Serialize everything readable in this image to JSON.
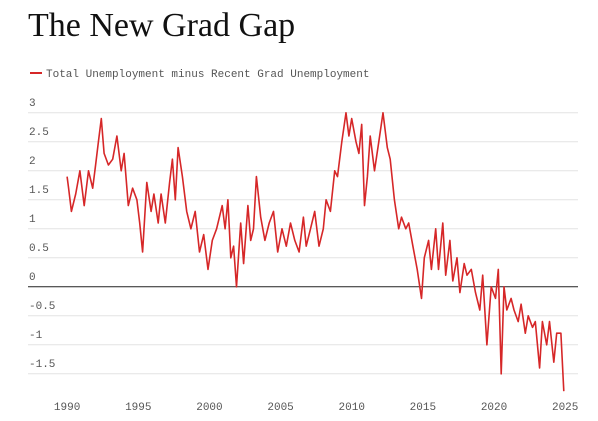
{
  "chart_data": {
    "type": "line",
    "title": "The New Grad Gap",
    "xlim": [
      1987.25,
      2025.9
    ],
    "xticks": [
      1990,
      1995,
      2000,
      2005,
      2010,
      2015,
      2020,
      2025
    ],
    "ylim": [
      -1.9,
      3.1
    ],
    "yticks": [
      3,
      2.5,
      2,
      1.5,
      1,
      0.5,
      0,
      -0.5,
      -1,
      -1.5
    ],
    "grid": true,
    "legend": "top-left",
    "x": [
      1990.0,
      1990.1,
      1990.3,
      1990.6,
      1990.9,
      1991.2,
      1991.5,
      1991.8,
      1992.0,
      1992.2,
      1992.4,
      1992.6,
      1992.9,
      1993.2,
      1993.5,
      1993.8,
      1994.0,
      1994.3,
      1994.6,
      1994.9,
      1995.1,
      1995.3,
      1995.6,
      1995.9,
      1996.1,
      1996.4,
      1996.6,
      1996.9,
      1997.2,
      1997.4,
      1997.6,
      1997.8,
      1998.1,
      1998.4,
      1998.7,
      1999.0,
      1999.3,
      1999.6,
      1999.9,
      2000.2,
      2000.5,
      2000.9,
      2001.1,
      2001.3,
      2001.5,
      2001.7,
      2001.9,
      2002.2,
      2002.4,
      2002.7,
      2002.9,
      2003.1,
      2003.3,
      2003.6,
      2003.9,
      2004.2,
      2004.5,
      2004.8,
      2005.1,
      2005.4,
      2005.7,
      2006.0,
      2006.3,
      2006.6,
      2006.8,
      2007.1,
      2007.4,
      2007.7,
      2008.0,
      2008.2,
      2008.5,
      2008.8,
      2009.0,
      2009.3,
      2009.6,
      2009.8,
      2010.0,
      2010.3,
      2010.5,
      2010.7,
      2010.9,
      2011.1,
      2011.3,
      2011.6,
      2011.9,
      2012.2,
      2012.5,
      2012.7,
      2013.0,
      2013.3,
      2013.5,
      2013.8,
      2014.0,
      2014.3,
      2014.6,
      2014.9,
      2015.1,
      2015.4,
      2015.6,
      2015.9,
      2016.1,
      2016.4,
      2016.6,
      2016.9,
      2017.1,
      2017.4,
      2017.6,
      2017.9,
      2018.1,
      2018.4,
      2018.7,
      2019.0,
      2019.2,
      2019.5,
      2019.8,
      2020.1,
      2020.3,
      2020.5,
      2020.7,
      2020.9,
      2021.2,
      2021.4,
      2021.7,
      2021.9,
      2022.2,
      2022.4,
      2022.7,
      2022.9,
      2023.2,
      2023.4,
      2023.7,
      2023.9,
      2024.2,
      2024.4,
      2024.7,
      2024.9
    ],
    "series": [
      {
        "name": "Total Unemployment minus Recent Grad Unemployment",
        "color": "#d62728",
        "values": [
          1.9,
          1.7,
          1.3,
          1.6,
          2.0,
          1.4,
          2.0,
          1.7,
          2.1,
          2.5,
          2.9,
          2.3,
          2.1,
          2.2,
          2.6,
          2.0,
          2.3,
          1.4,
          1.7,
          1.5,
          1.1,
          0.6,
          1.8,
          1.3,
          1.6,
          1.1,
          1.6,
          1.1,
          1.8,
          2.2,
          1.5,
          2.4,
          1.9,
          1.3,
          1.0,
          1.3,
          0.6,
          0.9,
          0.3,
          0.8,
          1.0,
          1.4,
          1.0,
          1.5,
          0.5,
          0.7,
          0.0,
          1.1,
          0.4,
          1.4,
          0.8,
          1.0,
          1.9,
          1.2,
          0.8,
          1.1,
          1.3,
          0.6,
          1.0,
          0.7,
          1.1,
          0.8,
          0.6,
          1.2,
          0.7,
          1.0,
          1.3,
          0.7,
          1.0,
          1.5,
          1.3,
          2.0,
          1.9,
          2.5,
          3.0,
          2.6,
          2.9,
          2.5,
          2.3,
          2.8,
          1.4,
          1.9,
          2.6,
          2.0,
          2.5,
          3.0,
          2.4,
          2.2,
          1.5,
          1.0,
          1.2,
          1.0,
          1.1,
          0.7,
          0.3,
          -0.2,
          0.5,
          0.8,
          0.3,
          1.0,
          0.3,
          1.1,
          0.2,
          0.8,
          0.1,
          0.5,
          -0.1,
          0.4,
          0.2,
          0.3,
          -0.1,
          -0.4,
          0.2,
          -1.0,
          0.0,
          -0.2,
          0.3,
          -1.5,
          0.0,
          -0.4,
          -0.2,
          -0.4,
          -0.6,
          -0.3,
          -0.8,
          -0.5,
          -0.7,
          -0.6,
          -1.4,
          -0.6,
          -1.0,
          -0.6,
          -1.3,
          -0.8,
          -0.8,
          -1.8
        ]
      }
    ]
  }
}
